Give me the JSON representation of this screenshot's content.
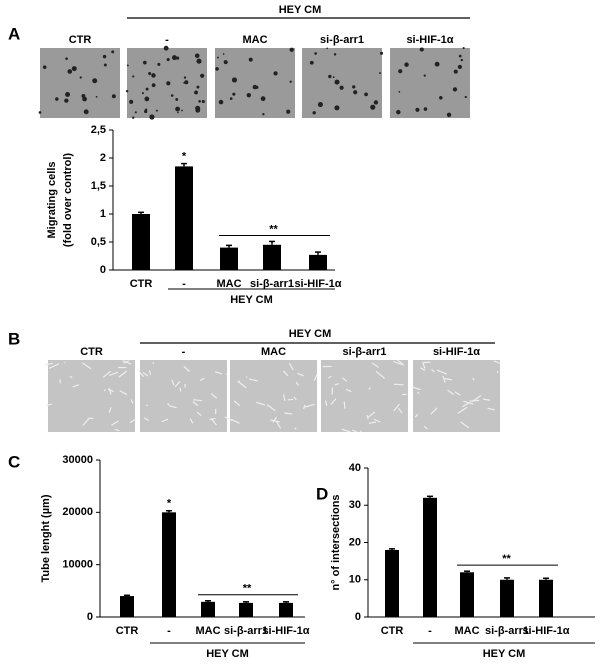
{
  "image_panels": [
    {
      "label": "A",
      "header": "HEY CM",
      "captions": [
        "CTR",
        "-",
        "MAC",
        "si-β-arr1",
        "si-HIF-1α"
      ]
    },
    {
      "label": "B",
      "header": "HEY CM",
      "captions": [
        "CTR",
        "-",
        "MAC",
        "si-β-arr1",
        "si-HIF-1α"
      ]
    }
  ],
  "chart_data": [
    {
      "type": "bar",
      "ylabel": "Migrating cells",
      "ylabel_note": "(fold over control)",
      "categories": [
        "CTR",
        "-",
        "MAC",
        "si-β-arr1",
        "si-HIF-1α"
      ],
      "group_label": "HEY CM",
      "values": [
        1.0,
        1.85,
        0.4,
        0.45,
        0.27
      ],
      "errors": [
        0.03,
        0.05,
        0.04,
        0.06,
        0.05
      ],
      "color": "#000000",
      "ylim": [
        0,
        2.5
      ],
      "yticks": [
        0,
        {
          "value": 0.5,
          "label": "0,5"
        },
        1,
        {
          "value": 1.5,
          "label": "1,5"
        },
        2,
        {
          "value": 2.5,
          "label": "2,5"
        }
      ],
      "annotations": [
        {
          "text": "*",
          "category": "-"
        },
        {
          "text": "**",
          "from": "MAC",
          "to": "si-HIF-1α"
        }
      ]
    },
    {
      "type": "bar",
      "panel": "C",
      "ylabel": "Tube lenght (µm)",
      "categories": [
        "CTR",
        "-",
        "MAC",
        "si-β-arr1",
        "si-HIF-1α"
      ],
      "group_label": "HEY CM",
      "values": [
        4000,
        20000,
        2900,
        2700,
        2700
      ],
      "errors": [
        150,
        300,
        200,
        200,
        200
      ],
      "color": "#000000",
      "ylim": [
        0,
        30000
      ],
      "yticks": [
        0,
        10000,
        20000,
        30000
      ],
      "annotations": [
        {
          "text": "*",
          "category": "-"
        },
        {
          "text": "**",
          "from": "MAC",
          "to": "si-HIF-1α"
        }
      ]
    },
    {
      "type": "bar",
      "panel": "D",
      "ylabel": "n° of intersections",
      "categories": [
        "CTR",
        "-",
        "MAC",
        "si-β-arr1",
        "si-HIF-1α"
      ],
      "group_label": "HEY CM",
      "values": [
        18,
        32,
        12,
        10,
        10
      ],
      "errors": [
        0.3,
        0.4,
        0.3,
        0.5,
        0.4
      ],
      "color": "#000000",
      "ylim": [
        0,
        40
      ],
      "yticks": [
        0,
        10,
        20,
        30,
        40
      ],
      "annotations": [
        {
          "text": "**",
          "from": "MAC",
          "to": "si-HIF-1α"
        }
      ]
    }
  ]
}
